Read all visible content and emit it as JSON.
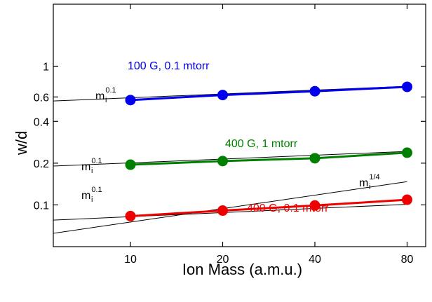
{
  "chart_data": {
    "type": "scatter",
    "title": "",
    "xlabel": "Ion Mass (a.m.u.)",
    "ylabel": "w/d",
    "xscale": "log",
    "yscale": "log",
    "xlim": [
      5.6,
      92
    ],
    "ylim": [
      0.05,
      2.8
    ],
    "x_ticks": [
      10,
      20,
      40,
      80
    ],
    "x_tick_labels": [
      "10",
      "20",
      "40",
      "80"
    ],
    "y_ticks": [
      0.1,
      0.2,
      0.4,
      0.6,
      1
    ],
    "y_tick_labels": [
      "0.1",
      "0.2",
      "0.4",
      "0.6",
      "1"
    ],
    "grid": false,
    "legend": "none",
    "series": [
      {
        "name": "100 G, 0.1 mtorr",
        "color": "#0000ee",
        "x": [
          10,
          20,
          40,
          80
        ],
        "y": [
          0.57,
          0.62,
          0.66,
          0.71
        ]
      },
      {
        "name": "400 G, 1 mtorr",
        "color": "#008000",
        "x": [
          10,
          20,
          40,
          80
        ],
        "y": [
          0.195,
          0.207,
          0.217,
          0.238
        ]
      },
      {
        "name": "400 G, 0.1 mtorr",
        "color": "#ee0000",
        "x": [
          10,
          20,
          40,
          80
        ],
        "y": [
          0.083,
          0.091,
          0.099,
          0.109
        ]
      }
    ],
    "fit_lines": [
      {
        "label": "mi^0.1",
        "base": "m",
        "sub": "i",
        "sup": "0.1",
        "x": [
          3,
          80
        ],
        "y": [
          0.53,
          0.717
        ]
      },
      {
        "label": "mi^0.1",
        "base": "m",
        "sub": "i",
        "sup": "0.1",
        "x": [
          3,
          80
        ],
        "y": [
          0.18,
          0.243
        ]
      },
      {
        "label": "mi^0.1",
        "base": "m",
        "sub": "i",
        "sup": "0.1",
        "x": [
          3,
          80
        ],
        "y": [
          0.073,
          0.101
        ]
      },
      {
        "label": "mi^1/4",
        "base": "m",
        "sub": "i",
        "sup": "1/4",
        "x": [
          3,
          80
        ],
        "y": [
          0.051,
          0.147
        ]
      }
    ]
  }
}
